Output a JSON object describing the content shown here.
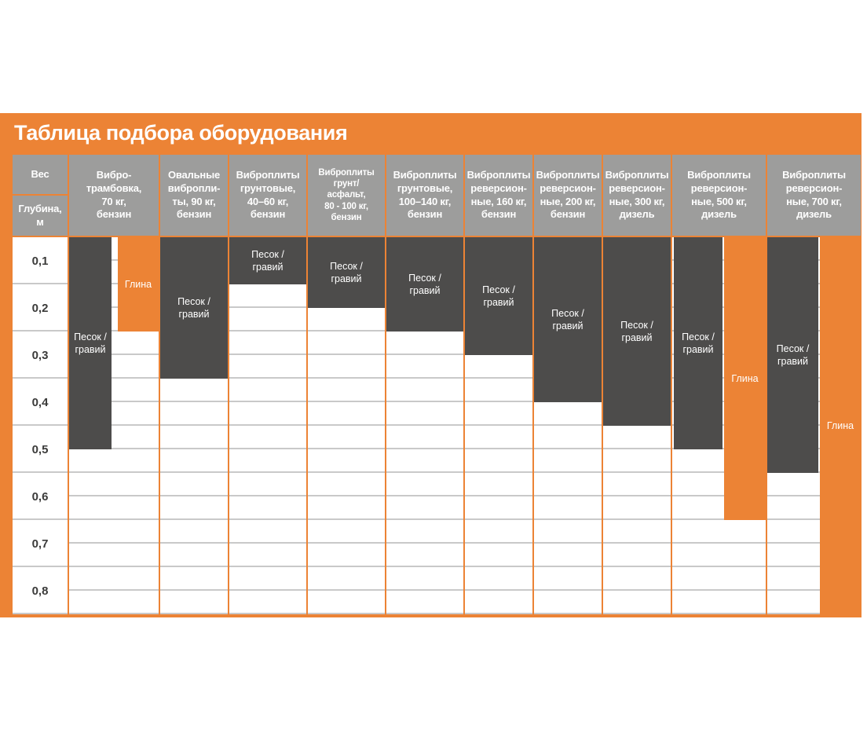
{
  "title": "Таблица подбора оборудования",
  "corner": {
    "weight_label": "Вес",
    "depth_label": "Глубина,\nм"
  },
  "depth_rows": [
    "0,1",
    "0,2",
    "0,3",
    "0,4",
    "0,5",
    "0,6",
    "0,7",
    "0,8"
  ],
  "materials": {
    "sand_gravel": "Песок / гравий",
    "clay": "Глина"
  },
  "colors": {
    "accent_orange": "#EC8335",
    "bar_dark_gray": "#4D4C4B",
    "header_gray": "#9D9D9C",
    "gridline_gray": "#C9C9C9",
    "row_label_gray": "#3B3B3A"
  },
  "columns": [
    {
      "id": "vibro-rammer-70kg",
      "label": "Вибро-\nтрамбовка,\n70 кг,\nбензин",
      "bars": [
        {
          "material": "sand_gravel",
          "label": "Песок /\nгравий",
          "max_depth_m": 0.5
        },
        {
          "material": "clay",
          "label": "Глина",
          "max_depth_m": 0.25
        }
      ]
    },
    {
      "id": "oval-plates-90kg",
      "label": "Овальные\nвибропли-\nты, 90 кг,\nбензин",
      "bars": [
        {
          "material": "sand_gravel",
          "label": "Песок /\nгравий",
          "max_depth_m": 0.35
        }
      ]
    },
    {
      "id": "soil-plates-40-60kg",
      "label": "Виброплиты\nгрунтовые,\n40–60 кг,\nбензин",
      "bars": [
        {
          "material": "sand_gravel",
          "label": "Песок /\nгравий",
          "max_depth_m": 0.15
        }
      ]
    },
    {
      "id": "soil-asphalt-plates-80-100kg",
      "label": "Виброплиты\nгрунт/\nасфальт,\n80 - 100 кг,\nбензин",
      "bars": [
        {
          "material": "sand_gravel",
          "label": "Песок /\nгравий",
          "max_depth_m": 0.2
        }
      ]
    },
    {
      "id": "soil-plates-100-140kg",
      "label": "Виброплиты\nгрунтовые,\n100–140 кг,\nбензин",
      "bars": [
        {
          "material": "sand_gravel",
          "label": "Песок /\nгравий",
          "max_depth_m": 0.25
        }
      ]
    },
    {
      "id": "reversible-plates-160kg",
      "label": "Виброплиты\nреверсион-\nные, 160 кг,\nбензин",
      "bars": [
        {
          "material": "sand_gravel",
          "label": "Песок /\nгравий",
          "max_depth_m": 0.3
        }
      ]
    },
    {
      "id": "reversible-plates-200kg",
      "label": "Виброплиты\nреверсион-\nные, 200 кг,\nбензин",
      "bars": [
        {
          "material": "sand_gravel",
          "label": "Песок /\nгравий",
          "max_depth_m": 0.4
        }
      ]
    },
    {
      "id": "reversible-plates-300kg",
      "label": "Виброплиты\nреверсион-\nные, 300 кг,\nдизель",
      "bars": [
        {
          "material": "sand_gravel",
          "label": "Песок /\nгравий",
          "max_depth_m": 0.45
        }
      ]
    },
    {
      "id": "reversible-plates-500kg",
      "label": "Виброплиты\nреверсион-\nные, 500 кг,\nдизель",
      "bars": [
        {
          "material": "sand_gravel",
          "label": "Песок /\nгравий",
          "max_depth_m": 0.5
        },
        {
          "material": "clay",
          "label": "Глина",
          "max_depth_m": 0.65
        }
      ]
    },
    {
      "id": "reversible-plates-700kg",
      "label": "Виброплиты\nреверсион-\nные, 700 кг,\nдизель",
      "bars": [
        {
          "material": "sand_gravel",
          "label": "Песок /\nгравий",
          "max_depth_m": 0.55
        },
        {
          "material": "clay",
          "label": "Глина",
          "max_depth_m": 0.85
        }
      ]
    }
  ],
  "chart_data": {
    "type": "bar",
    "title": "Таблица подбора оборудования",
    "categories": [
      "Вибро-трамбовка, 70 кг, бензин",
      "Овальные виброплиты, 90 кг, бензин",
      "Виброплиты грунтовые, 40–60 кг, бензин",
      "Виброплиты грунт/асфальт, 80 - 100 кг, бензин",
      "Виброплиты грунтовые, 100–140 кг, бензин",
      "Виброплиты реверсионные, 160 кг, бензин",
      "Виброплиты реверсионные, 200 кг, бензин",
      "Виброплиты реверсионные, 300 кг, дизель",
      "Виброплиты реверсионные, 500 кг, дизель",
      "Виброплиты реверсионные, 700 кг, дизель"
    ],
    "series": [
      {
        "name": "Песок / гравий",
        "values": [
          0.5,
          0.35,
          0.15,
          0.2,
          0.25,
          0.3,
          0.4,
          0.45,
          0.5,
          0.55
        ]
      },
      {
        "name": "Глина",
        "values": [
          0.25,
          null,
          null,
          null,
          null,
          null,
          null,
          null,
          0.65,
          0.85
        ]
      }
    ],
    "xlabel": "Вес",
    "ylabel": "Глубина, м",
    "ylim": [
      0,
      0.85
    ],
    "y_ticks": [
      "0,1",
      "0,2",
      "0,3",
      "0,4",
      "0,5",
      "0,6",
      "0,7",
      "0,8"
    ],
    "grid": true,
    "legend_position": "inside-bars",
    "orientation": "vertical-depth-down"
  }
}
